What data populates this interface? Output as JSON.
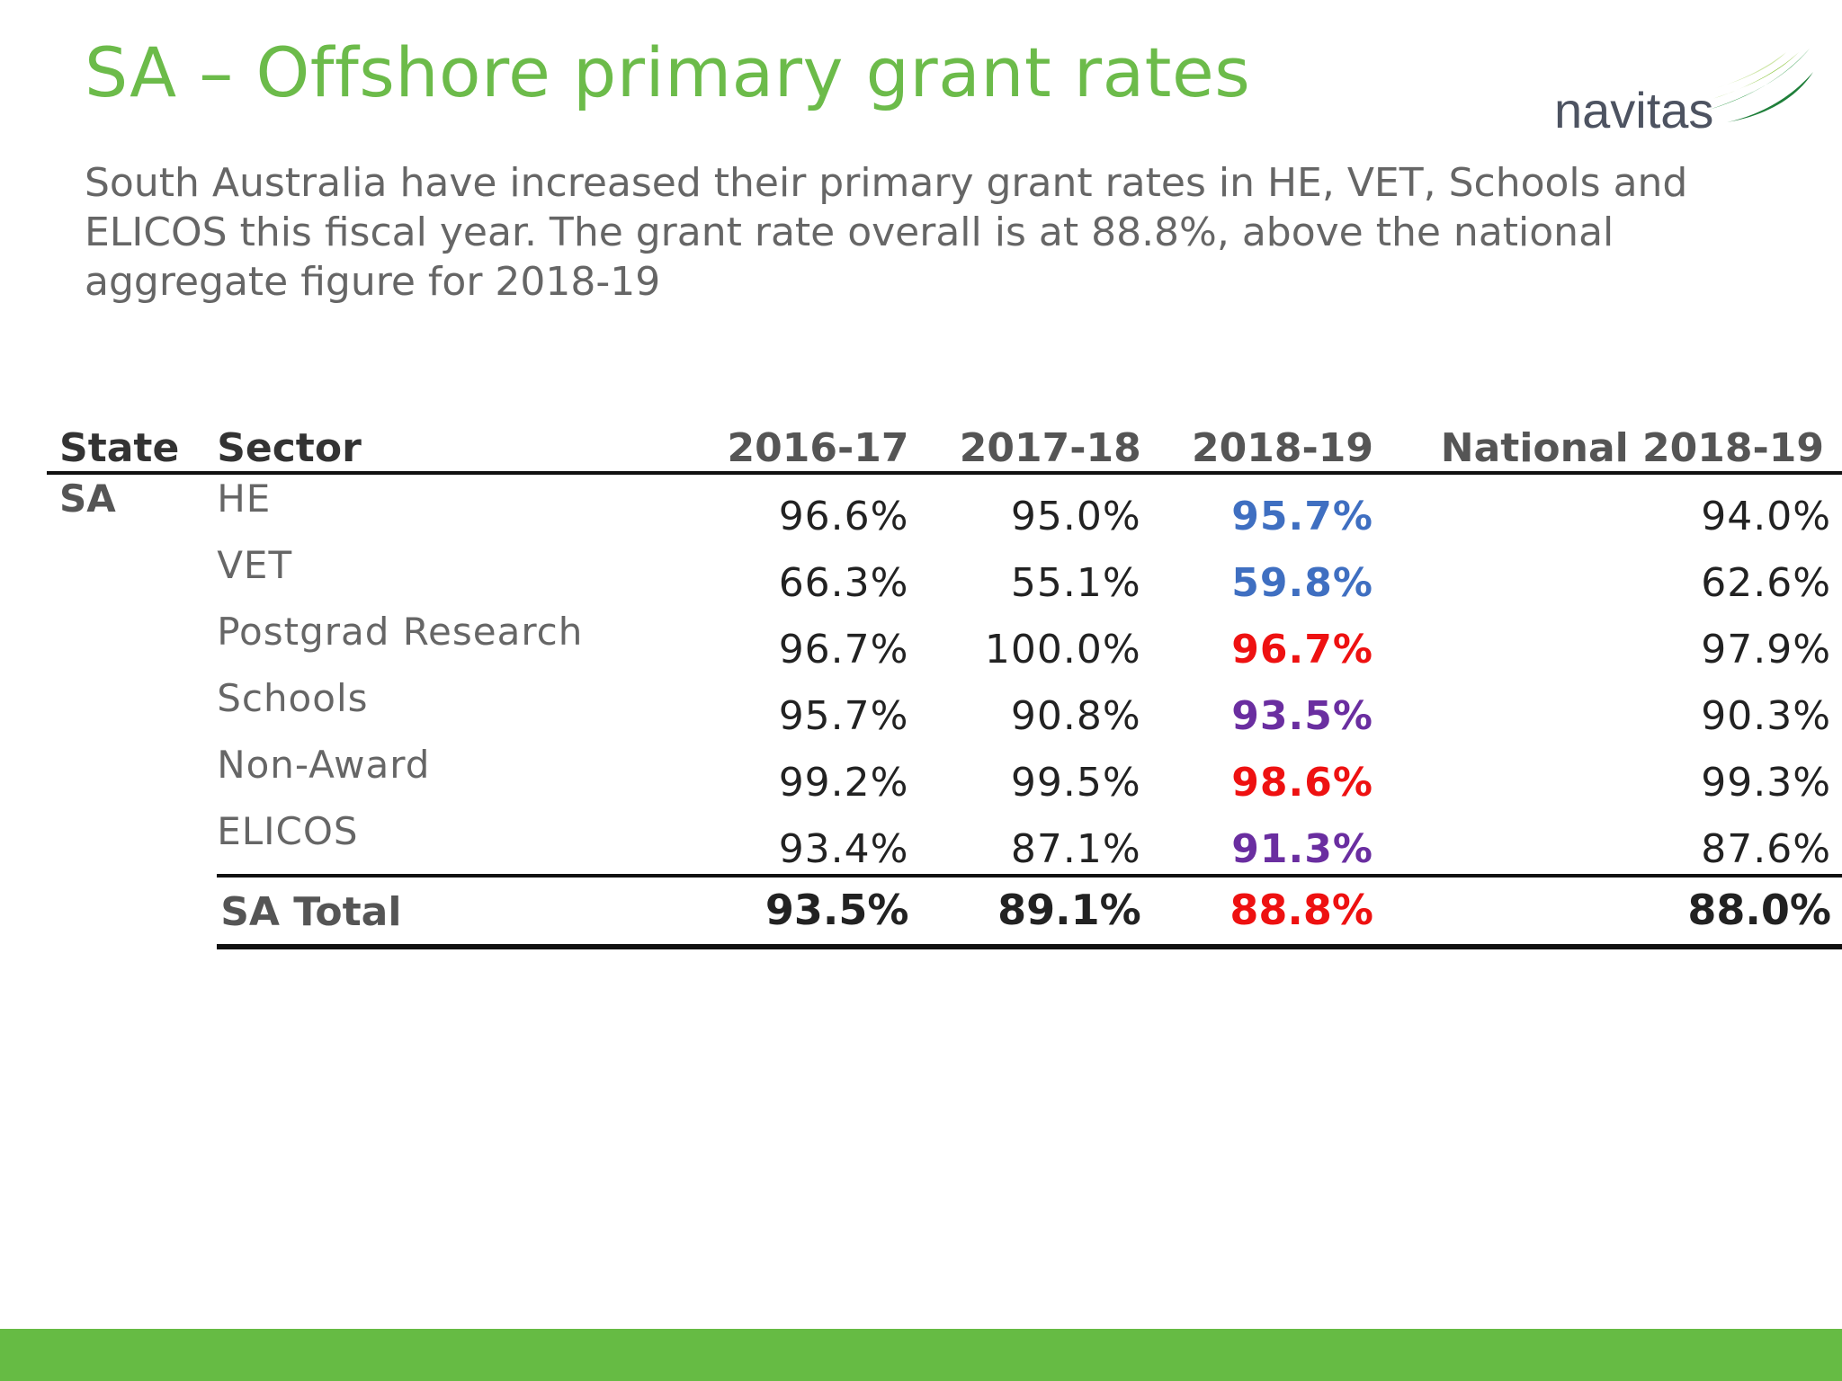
{
  "slide": {
    "title": "SA – Offshore primary grant rates",
    "intro": "South Australia have increased their primary grant rates in HE, VET, Schools and ELICOS this fiscal year. The grant rate overall is at 88.8%, above the national aggregate figure for 2018-19",
    "logo_text": "navitas"
  },
  "table": {
    "headers": {
      "state": "State",
      "sector": "Sector",
      "y1": "2016-17",
      "y2": "2017-18",
      "y3": "2018-19",
      "national": "National 2018-19"
    },
    "state": "SA",
    "rows": [
      {
        "sector": "HE",
        "y1": "96.6%",
        "y2": "95.0%",
        "y3": "95.7%",
        "y3_color": "#3f6fc1",
        "national": "94.0%"
      },
      {
        "sector": "VET",
        "y1": "66.3%",
        "y2": "55.1%",
        "y3": "59.8%",
        "y3_color": "#3f6fc1",
        "national": "62.6%"
      },
      {
        "sector": "Postgrad Research",
        "y1": "96.7%",
        "y2": "100.0%",
        "y3": "96.7%",
        "y3_color": "#ee1111",
        "national": "97.9%"
      },
      {
        "sector": "Schools",
        "y1": "95.7%",
        "y2": "90.8%",
        "y3": "93.5%",
        "y3_color": "#6a2ea0",
        "national": "90.3%"
      },
      {
        "sector": "Non-Award",
        "y1": "99.2%",
        "y2": "99.5%",
        "y3": "98.6%",
        "y3_color": "#ee1111",
        "national": "99.3%"
      },
      {
        "sector": "ELICOS",
        "y1": "93.4%",
        "y2": "87.1%",
        "y3": "91.3%",
        "y3_color": "#6a2ea0",
        "national": "87.6%"
      }
    ],
    "total": {
      "label": "SA Total",
      "y1": "93.5%",
      "y2": "89.1%",
      "y3": "88.8%",
      "y3_color": "#ee1111",
      "national": "88.0%"
    }
  },
  "colors": {
    "title_green": "#6cbb4a",
    "footer_green": "#66bb44",
    "increase_blue": "#3f6fc1",
    "decrease_red": "#ee1111",
    "mid_purple": "#6a2ea0"
  }
}
